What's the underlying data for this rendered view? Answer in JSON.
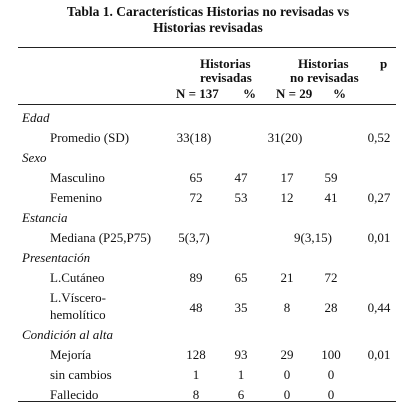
{
  "title": [
    "Tabla 1. Características Historias no revisadas vs",
    "Historias revisadas"
  ],
  "header": {
    "col1": [
      "Historias",
      "revisadas"
    ],
    "col2": [
      "Historias",
      "no revisadas"
    ],
    "p": "p",
    "n1": "N = 137",
    "pct1": "%",
    "n2": "N = 29",
    "pct2": "%"
  },
  "sections": [
    {
      "name": "Edad",
      "rows": [
        {
          "label": [
            "Promedio (SD)"
          ],
          "cells": [
            "33(18)",
            null,
            "31(20)",
            null,
            "0,52"
          ]
        }
      ]
    },
    {
      "name": "Sexo",
      "rows": [
        {
          "label": [
            "Masculino"
          ],
          "cells": [
            "65",
            "47",
            "17",
            "59",
            null
          ]
        },
        {
          "label": [
            "Femenino"
          ],
          "cells": [
            "72",
            "53",
            "12",
            "41",
            "0,27"
          ]
        }
      ]
    },
    {
      "name": "Estancia",
      "rows": [
        {
          "label": [
            "Mediana (P25,P75)"
          ],
          "cells": [
            "5(3,7)",
            null,
            null,
            "9(3,15)",
            "0,01"
          ]
        }
      ]
    },
    {
      "name": "Presentación",
      "rows": [
        {
          "label": [
            "L.Cutáneo"
          ],
          "cells": [
            "89",
            "65",
            "21",
            "72",
            null
          ]
        },
        {
          "label": [
            "L.Víscero-",
            "hemolítico"
          ],
          "cells": [
            "48",
            "35",
            "8",
            "28",
            "0,44"
          ]
        }
      ]
    },
    {
      "name": "Condición al alta",
      "rows": [
        {
          "label": [
            "Mejoría"
          ],
          "cells": [
            "128",
            "93",
            "29",
            "100",
            "0,01"
          ]
        },
        {
          "label": [
            "sin cambios"
          ],
          "cells": [
            "1",
            "1",
            "0",
            "0",
            null
          ]
        },
        {
          "label": [
            "Fallecido"
          ],
          "cells": [
            "8",
            "6",
            "0",
            "0",
            null
          ]
        }
      ]
    }
  ]
}
